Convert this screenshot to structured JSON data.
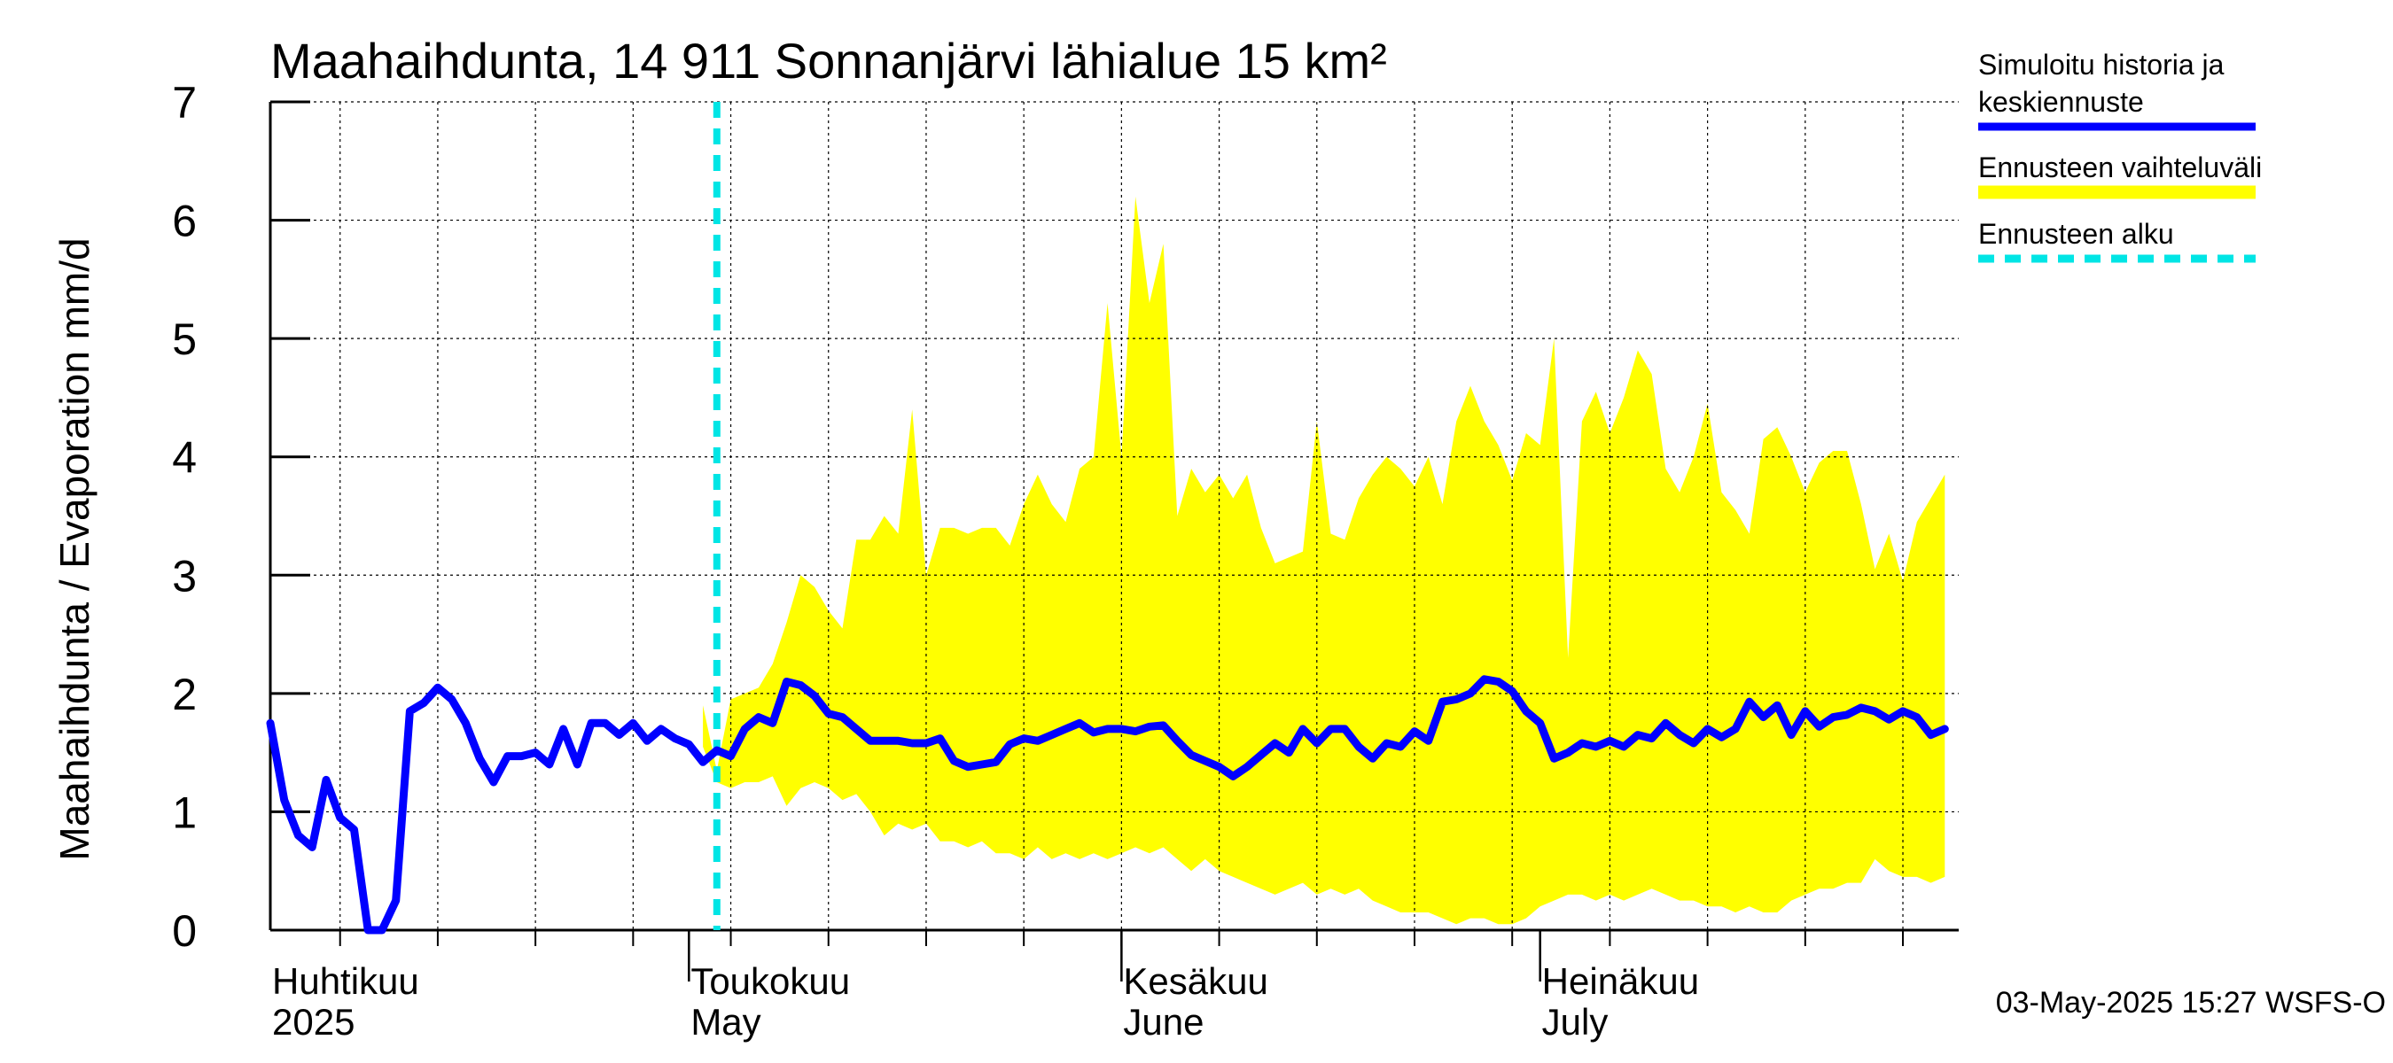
{
  "chart_data": {
    "type": "area",
    "title": "Maahaihdunta, 14 911 Sonnanjärvi lähialue 15 km²",
    "ylabel": "Maahaihdunta / Evaporation   mm/d",
    "ylim": [
      0,
      7
    ],
    "yticks": [
      "0",
      "1",
      "2",
      "3",
      "4",
      "5",
      "6",
      "7"
    ],
    "xlim": [
      "2025-04-01",
      "2025-07-31"
    ],
    "grid": true,
    "month_labels": [
      {
        "date": "2025-04-01",
        "line1": "Huhtikuu",
        "line2": "2025"
      },
      {
        "date": "2025-05-01",
        "line1": "Toukokuu",
        "line2": "May"
      },
      {
        "date": "2025-06-01",
        "line1": "Kesäkuu",
        "line2": "June"
      },
      {
        "date": "2025-07-01",
        "line1": "Heinäkuu",
        "line2": "July"
      }
    ],
    "legend": {
      "placement": "right",
      "entries": [
        {
          "label_line1": "Simuloitu historia ja",
          "label_line2": "keskiennuste",
          "color": "#0000ff",
          "style": "solid"
        },
        {
          "label_line1": "Ennusteen vaihteluväli",
          "label_line2": "",
          "color": "#ffff00",
          "style": "band"
        },
        {
          "label_line1": "Ennusteen alku",
          "label_line2": "",
          "color": "#00e5e5",
          "style": "dashed"
        }
      ]
    },
    "forecast_start": "2025-05-03",
    "timestamp": "03-May-2025 15:27 WSFS-O",
    "band_upper": [
      [
        "2025-05-02",
        1.9
      ],
      [
        "2025-05-03",
        1.35
      ],
      [
        "2025-05-04",
        1.95
      ],
      [
        "2025-05-05",
        2.0
      ],
      [
        "2025-05-06",
        2.05
      ],
      [
        "2025-05-07",
        2.25
      ],
      [
        "2025-05-08",
        2.6
      ],
      [
        "2025-05-09",
        3.0
      ],
      [
        "2025-05-10",
        2.9
      ],
      [
        "2025-05-11",
        2.7
      ],
      [
        "2025-05-12",
        2.55
      ],
      [
        "2025-05-13",
        3.3
      ],
      [
        "2025-05-14",
        3.3
      ],
      [
        "2025-05-15",
        3.5
      ],
      [
        "2025-05-16",
        3.35
      ],
      [
        "2025-05-17",
        4.4
      ],
      [
        "2025-05-18",
        3.0
      ],
      [
        "2025-05-19",
        3.4
      ],
      [
        "2025-05-20",
        3.4
      ],
      [
        "2025-05-21",
        3.35
      ],
      [
        "2025-05-22",
        3.4
      ],
      [
        "2025-05-23",
        3.4
      ],
      [
        "2025-05-24",
        3.25
      ],
      [
        "2025-05-25",
        3.6
      ],
      [
        "2025-05-26",
        3.85
      ],
      [
        "2025-05-27",
        3.6
      ],
      [
        "2025-05-28",
        3.45
      ],
      [
        "2025-05-29",
        3.9
      ],
      [
        "2025-05-30",
        4.0
      ],
      [
        "2025-05-31",
        5.3
      ],
      [
        "2025-06-01",
        4.0
      ],
      [
        "2025-06-02",
        6.2
      ],
      [
        "2025-06-03",
        5.3
      ],
      [
        "2025-06-04",
        5.8
      ],
      [
        "2025-06-05",
        3.5
      ],
      [
        "2025-06-06",
        3.9
      ],
      [
        "2025-06-07",
        3.7
      ],
      [
        "2025-06-08",
        3.85
      ],
      [
        "2025-06-09",
        3.65
      ],
      [
        "2025-06-10",
        3.85
      ],
      [
        "2025-06-11",
        3.4
      ],
      [
        "2025-06-12",
        3.1
      ],
      [
        "2025-06-13",
        3.15
      ],
      [
        "2025-06-14",
        3.2
      ],
      [
        "2025-06-15",
        4.3
      ],
      [
        "2025-06-16",
        3.35
      ],
      [
        "2025-06-17",
        3.3
      ],
      [
        "2025-06-18",
        3.65
      ],
      [
        "2025-06-19",
        3.85
      ],
      [
        "2025-06-20",
        4.0
      ],
      [
        "2025-06-21",
        3.9
      ],
      [
        "2025-06-22",
        3.75
      ],
      [
        "2025-06-23",
        4.0
      ],
      [
        "2025-06-24",
        3.6
      ],
      [
        "2025-06-25",
        4.3
      ],
      [
        "2025-06-26",
        4.6
      ],
      [
        "2025-06-27",
        4.3
      ],
      [
        "2025-06-28",
        4.1
      ],
      [
        "2025-06-29",
        3.8
      ],
      [
        "2025-06-30",
        4.2
      ],
      [
        "2025-07-01",
        4.1
      ],
      [
        "2025-07-02",
        5.0
      ],
      [
        "2025-07-03",
        2.3
      ],
      [
        "2025-07-04",
        4.3
      ],
      [
        "2025-07-05",
        4.55
      ],
      [
        "2025-07-06",
        4.2
      ],
      [
        "2025-07-07",
        4.5
      ],
      [
        "2025-07-08",
        4.9
      ],
      [
        "2025-07-09",
        4.7
      ],
      [
        "2025-07-10",
        3.9
      ],
      [
        "2025-07-11",
        3.7
      ],
      [
        "2025-07-12",
        4.0
      ],
      [
        "2025-07-13",
        4.45
      ],
      [
        "2025-07-14",
        3.7
      ],
      [
        "2025-07-15",
        3.55
      ],
      [
        "2025-07-16",
        3.35
      ],
      [
        "2025-07-17",
        4.15
      ],
      [
        "2025-07-18",
        4.25
      ],
      [
        "2025-07-19",
        4.0
      ],
      [
        "2025-07-20",
        3.7
      ],
      [
        "2025-07-21",
        3.95
      ],
      [
        "2025-07-22",
        4.05
      ],
      [
        "2025-07-23",
        4.05
      ],
      [
        "2025-07-24",
        3.6
      ],
      [
        "2025-07-25",
        3.05
      ],
      [
        "2025-07-26",
        3.35
      ],
      [
        "2025-07-27",
        2.95
      ],
      [
        "2025-07-28",
        3.45
      ],
      [
        "2025-07-29",
        3.65
      ],
      [
        "2025-07-30",
        3.85
      ]
    ],
    "band_lower": [
      [
        "2025-05-02",
        1.55
      ],
      [
        "2025-05-03",
        1.25
      ],
      [
        "2025-05-04",
        1.2
      ],
      [
        "2025-05-05",
        1.25
      ],
      [
        "2025-05-06",
        1.25
      ],
      [
        "2025-05-07",
        1.3
      ],
      [
        "2025-05-08",
        1.05
      ],
      [
        "2025-05-09",
        1.2
      ],
      [
        "2025-05-10",
        1.25
      ],
      [
        "2025-05-11",
        1.2
      ],
      [
        "2025-05-12",
        1.1
      ],
      [
        "2025-05-13",
        1.15
      ],
      [
        "2025-05-14",
        1.0
      ],
      [
        "2025-05-15",
        0.8
      ],
      [
        "2025-05-16",
        0.9
      ],
      [
        "2025-05-17",
        0.85
      ],
      [
        "2025-05-18",
        0.9
      ],
      [
        "2025-05-19",
        0.75
      ],
      [
        "2025-05-20",
        0.75
      ],
      [
        "2025-05-21",
        0.7
      ],
      [
        "2025-05-22",
        0.75
      ],
      [
        "2025-05-23",
        0.65
      ],
      [
        "2025-05-24",
        0.65
      ],
      [
        "2025-05-25",
        0.6
      ],
      [
        "2025-05-26",
        0.7
      ],
      [
        "2025-05-27",
        0.6
      ],
      [
        "2025-05-28",
        0.65
      ],
      [
        "2025-05-29",
        0.6
      ],
      [
        "2025-05-30",
        0.65
      ],
      [
        "2025-05-31",
        0.6
      ],
      [
        "2025-06-01",
        0.65
      ],
      [
        "2025-06-02",
        0.7
      ],
      [
        "2025-06-03",
        0.65
      ],
      [
        "2025-06-04",
        0.7
      ],
      [
        "2025-06-05",
        0.6
      ],
      [
        "2025-06-06",
        0.5
      ],
      [
        "2025-06-07",
        0.6
      ],
      [
        "2025-06-08",
        0.5
      ],
      [
        "2025-06-09",
        0.45
      ],
      [
        "2025-06-10",
        0.4
      ],
      [
        "2025-06-11",
        0.35
      ],
      [
        "2025-06-12",
        0.3
      ],
      [
        "2025-06-13",
        0.35
      ],
      [
        "2025-06-14",
        0.4
      ],
      [
        "2025-06-15",
        0.3
      ],
      [
        "2025-06-16",
        0.35
      ],
      [
        "2025-06-17",
        0.3
      ],
      [
        "2025-06-18",
        0.35
      ],
      [
        "2025-06-19",
        0.25
      ],
      [
        "2025-06-20",
        0.2
      ],
      [
        "2025-06-21",
        0.15
      ],
      [
        "2025-06-22",
        0.15
      ],
      [
        "2025-06-23",
        0.15
      ],
      [
        "2025-06-24",
        0.1
      ],
      [
        "2025-06-25",
        0.05
      ],
      [
        "2025-06-26",
        0.1
      ],
      [
        "2025-06-27",
        0.1
      ],
      [
        "2025-06-28",
        0.05
      ],
      [
        "2025-06-29",
        0.05
      ],
      [
        "2025-06-30",
        0.1
      ],
      [
        "2025-07-01",
        0.2
      ],
      [
        "2025-07-02",
        0.25
      ],
      [
        "2025-07-03",
        0.3
      ],
      [
        "2025-07-04",
        0.3
      ],
      [
        "2025-07-05",
        0.25
      ],
      [
        "2025-07-06",
        0.3
      ],
      [
        "2025-07-07",
        0.25
      ],
      [
        "2025-07-08",
        0.3
      ],
      [
        "2025-07-09",
        0.35
      ],
      [
        "2025-07-10",
        0.3
      ],
      [
        "2025-07-11",
        0.25
      ],
      [
        "2025-07-12",
        0.25
      ],
      [
        "2025-07-13",
        0.2
      ],
      [
        "2025-07-14",
        0.2
      ],
      [
        "2025-07-15",
        0.15
      ],
      [
        "2025-07-16",
        0.2
      ],
      [
        "2025-07-17",
        0.15
      ],
      [
        "2025-07-18",
        0.15
      ],
      [
        "2025-07-19",
        0.25
      ],
      [
        "2025-07-20",
        0.3
      ],
      [
        "2025-07-21",
        0.35
      ],
      [
        "2025-07-22",
        0.35
      ],
      [
        "2025-07-23",
        0.4
      ],
      [
        "2025-07-24",
        0.4
      ],
      [
        "2025-07-25",
        0.6
      ],
      [
        "2025-07-26",
        0.5
      ],
      [
        "2025-07-27",
        0.45
      ],
      [
        "2025-07-28",
        0.45
      ],
      [
        "2025-07-29",
        0.4
      ],
      [
        "2025-07-30",
        0.45
      ]
    ],
    "series": [
      {
        "name": "Simuloitu historia ja keskiennuste",
        "points": [
          [
            "2025-04-01",
            1.75
          ],
          [
            "2025-04-02",
            1.1
          ],
          [
            "2025-04-03",
            0.8
          ],
          [
            "2025-04-04",
            0.7
          ],
          [
            "2025-04-05",
            1.27
          ],
          [
            "2025-04-06",
            0.95
          ],
          [
            "2025-04-07",
            0.85
          ],
          [
            "2025-04-08",
            0.0
          ],
          [
            "2025-04-09",
            0.0
          ],
          [
            "2025-04-10",
            0.25
          ],
          [
            "2025-04-11",
            1.85
          ],
          [
            "2025-04-12",
            1.92
          ],
          [
            "2025-04-13",
            2.05
          ],
          [
            "2025-04-14",
            1.95
          ],
          [
            "2025-04-15",
            1.75
          ],
          [
            "2025-04-16",
            1.45
          ],
          [
            "2025-04-17",
            1.25
          ],
          [
            "2025-04-18",
            1.47
          ],
          [
            "2025-04-19",
            1.47
          ],
          [
            "2025-04-20",
            1.5
          ],
          [
            "2025-04-21",
            1.4
          ],
          [
            "2025-04-22",
            1.7
          ],
          [
            "2025-04-23",
            1.4
          ],
          [
            "2025-04-24",
            1.75
          ],
          [
            "2025-04-25",
            1.75
          ],
          [
            "2025-04-26",
            1.65
          ],
          [
            "2025-04-27",
            1.75
          ],
          [
            "2025-04-28",
            1.6
          ],
          [
            "2025-04-29",
            1.7
          ],
          [
            "2025-04-30",
            1.62
          ],
          [
            "2025-05-01",
            1.57
          ],
          [
            "2025-05-02",
            1.42
          ],
          [
            "2025-05-03",
            1.52
          ],
          [
            "2025-05-04",
            1.47
          ],
          [
            "2025-05-05",
            1.7
          ],
          [
            "2025-05-06",
            1.8
          ],
          [
            "2025-05-07",
            1.75
          ],
          [
            "2025-05-08",
            2.1
          ],
          [
            "2025-05-09",
            2.07
          ],
          [
            "2025-05-10",
            1.98
          ],
          [
            "2025-05-11",
            1.83
          ],
          [
            "2025-05-12",
            1.8
          ],
          [
            "2025-05-13",
            1.7
          ],
          [
            "2025-05-14",
            1.6
          ],
          [
            "2025-05-15",
            1.6
          ],
          [
            "2025-05-16",
            1.6
          ],
          [
            "2025-05-17",
            1.58
          ],
          [
            "2025-05-18",
            1.58
          ],
          [
            "2025-05-19",
            1.62
          ],
          [
            "2025-05-20",
            1.43
          ],
          [
            "2025-05-21",
            1.38
          ],
          [
            "2025-05-22",
            1.4
          ],
          [
            "2025-05-23",
            1.42
          ],
          [
            "2025-05-24",
            1.57
          ],
          [
            "2025-05-25",
            1.62
          ],
          [
            "2025-05-26",
            1.6
          ],
          [
            "2025-05-27",
            1.65
          ],
          [
            "2025-05-28",
            1.7
          ],
          [
            "2025-05-29",
            1.75
          ],
          [
            "2025-05-30",
            1.67
          ],
          [
            "2025-05-31",
            1.7
          ],
          [
            "2025-06-01",
            1.7
          ],
          [
            "2025-06-02",
            1.68
          ],
          [
            "2025-06-03",
            1.72
          ],
          [
            "2025-06-04",
            1.73
          ],
          [
            "2025-06-05",
            1.6
          ],
          [
            "2025-06-06",
            1.48
          ],
          [
            "2025-06-07",
            1.43
          ],
          [
            "2025-06-08",
            1.38
          ],
          [
            "2025-06-09",
            1.3
          ],
          [
            "2025-06-10",
            1.38
          ],
          [
            "2025-06-11",
            1.48
          ],
          [
            "2025-06-12",
            1.58
          ],
          [
            "2025-06-13",
            1.5
          ],
          [
            "2025-06-14",
            1.7
          ],
          [
            "2025-06-15",
            1.58
          ],
          [
            "2025-06-16",
            1.7
          ],
          [
            "2025-06-17",
            1.7
          ],
          [
            "2025-06-18",
            1.55
          ],
          [
            "2025-06-19",
            1.45
          ],
          [
            "2025-06-20",
            1.58
          ],
          [
            "2025-06-21",
            1.55
          ],
          [
            "2025-06-22",
            1.68
          ],
          [
            "2025-06-23",
            1.6
          ],
          [
            "2025-06-24",
            1.93
          ],
          [
            "2025-06-25",
            1.95
          ],
          [
            "2025-06-26",
            2.0
          ],
          [
            "2025-06-27",
            2.12
          ],
          [
            "2025-06-28",
            2.1
          ],
          [
            "2025-06-29",
            2.02
          ],
          [
            "2025-06-30",
            1.85
          ],
          [
            "2025-07-01",
            1.75
          ],
          [
            "2025-07-02",
            1.45
          ],
          [
            "2025-07-03",
            1.5
          ],
          [
            "2025-07-04",
            1.58
          ],
          [
            "2025-07-05",
            1.55
          ],
          [
            "2025-07-06",
            1.6
          ],
          [
            "2025-07-07",
            1.55
          ],
          [
            "2025-07-08",
            1.65
          ],
          [
            "2025-07-09",
            1.62
          ],
          [
            "2025-07-10",
            1.75
          ],
          [
            "2025-07-11",
            1.65
          ],
          [
            "2025-07-12",
            1.58
          ],
          [
            "2025-07-13",
            1.7
          ],
          [
            "2025-07-14",
            1.63
          ],
          [
            "2025-07-15",
            1.7
          ],
          [
            "2025-07-16",
            1.93
          ],
          [
            "2025-07-17",
            1.8
          ],
          [
            "2025-07-18",
            1.9
          ],
          [
            "2025-07-19",
            1.65
          ],
          [
            "2025-07-20",
            1.85
          ],
          [
            "2025-07-21",
            1.72
          ],
          [
            "2025-07-22",
            1.8
          ],
          [
            "2025-07-23",
            1.82
          ],
          [
            "2025-07-24",
            1.88
          ],
          [
            "2025-07-25",
            1.85
          ],
          [
            "2025-07-26",
            1.78
          ],
          [
            "2025-07-27",
            1.85
          ],
          [
            "2025-07-28",
            1.8
          ],
          [
            "2025-07-29",
            1.65
          ],
          [
            "2025-07-30",
            1.7
          ]
        ]
      }
    ]
  }
}
